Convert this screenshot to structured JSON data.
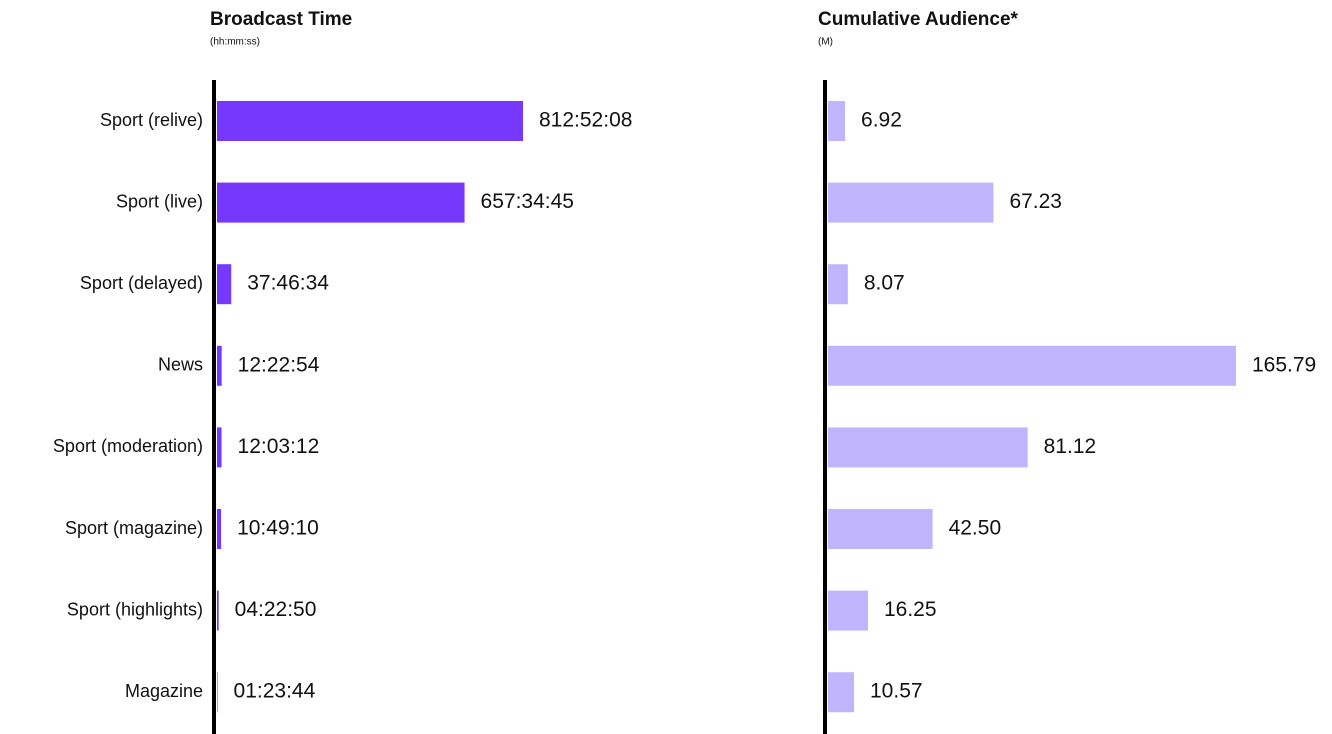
{
  "chart_data": [
    {
      "type": "bar",
      "orientation": "horizontal",
      "title": "Broadcast Time",
      "subtitle": "(hh:mm:ss)",
      "color": "#7538fc",
      "categories": [
        "Sport (relive)",
        "Sport (live)",
        "Sport (delayed)",
        "News",
        "Sport (moderation)",
        "Sport (magazine)",
        "Sport (highlights)",
        "Magazine"
      ],
      "values": [
        812.8689,
        657.5792,
        37.7761,
        12.3817,
        12.0533,
        10.8194,
        4.3806,
        1.3956
      ],
      "value_labels": [
        "812:52:08",
        "657:34:45",
        "37:46:34",
        "12:22:54",
        "12:03:12",
        "10:49:10",
        "04:22:50",
        "01:23:44"
      ]
    },
    {
      "type": "bar",
      "orientation": "horizontal",
      "title": "Cumulative Audience*",
      "subtitle": "(M)",
      "color": "#c0b5fc",
      "values": [
        6.92,
        67.23,
        8.07,
        165.79,
        81.12,
        42.5,
        16.25,
        10.57
      ],
      "value_labels": [
        "6.92",
        "67.23",
        "8.07",
        "165.79",
        "81.12",
        "42.50",
        "16.25",
        "10.57"
      ]
    }
  ]
}
